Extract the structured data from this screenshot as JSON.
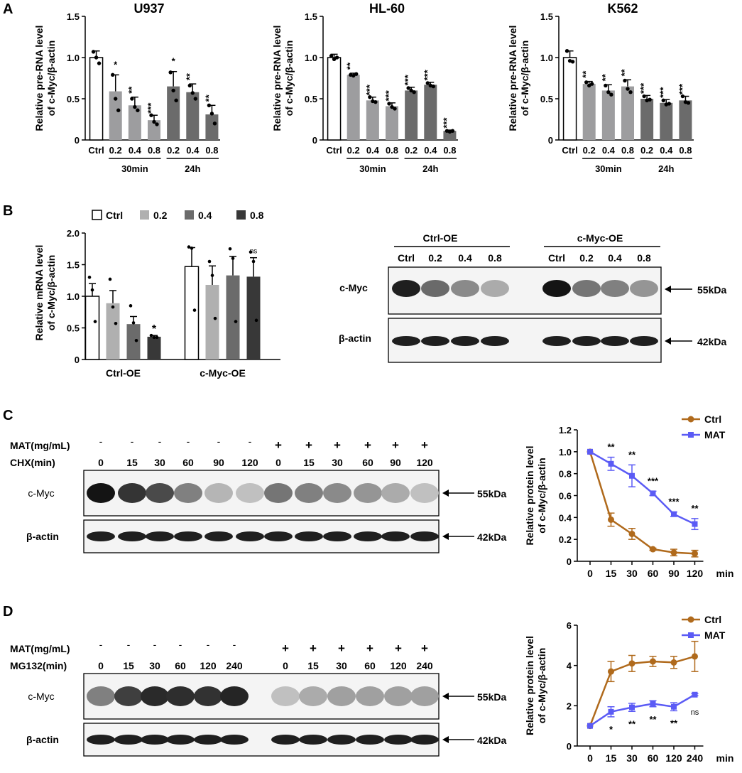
{
  "panels": {
    "a": "A",
    "b": "B",
    "c": "C",
    "d": "D"
  },
  "colors": {
    "ctrl_bar": "#ffffff",
    "light_gray": "#b0b0b0",
    "mid_gray": "#9d9d9f",
    "dark_gray": "#6b6b6b",
    "darkest_gray": "#383838",
    "ctrl_line": "#b06a1c",
    "mat_line": "#5b5bf5"
  },
  "blots": {
    "panel_b": {
      "group_labels": [
        "Ctrl-OE",
        "c-Myc-OE"
      ],
      "lane_labels": [
        "Ctrl",
        "0.2",
        "0.4",
        "0.8",
        "Ctrl",
        "0.2",
        "0.4",
        "0.8"
      ],
      "row_labels": [
        "c-Myc",
        "β-actin"
      ],
      "markers": [
        "55kDa",
        "42kDa"
      ]
    },
    "panel_c": {
      "treatment_label": "MAT(mg/mL)",
      "time_label": "CHX(min)",
      "treatment_marks": [
        "-",
        "-",
        "-",
        "-",
        "-",
        "-",
        "+",
        "+",
        "+",
        "+",
        "+",
        "+"
      ],
      "time_points": [
        "0",
        "15",
        "30",
        "60",
        "90",
        "120",
        "0",
        "15",
        "30",
        "60",
        "90",
        "120"
      ],
      "row_labels": [
        "c-Myc",
        "β-actin"
      ],
      "markers": [
        "55kDa",
        "42kDa"
      ]
    },
    "panel_d": {
      "treatment_label": "MAT(mg/mL)",
      "time_label": "MG132(min)",
      "treatment_marks": [
        "-",
        "-",
        "-",
        "-",
        "-",
        "-",
        "+",
        "+",
        "+",
        "+",
        "+",
        "+"
      ],
      "time_points": [
        "0",
        "15",
        "30",
        "60",
        "120",
        "240",
        "0",
        "15",
        "30",
        "60",
        "120",
        "240"
      ],
      "row_labels": [
        "c-Myc",
        "β-actin"
      ],
      "markers": [
        "55kDa",
        "42kDa"
      ]
    }
  },
  "chart_data": [
    {
      "id": "a1",
      "type": "bar",
      "title": "U937",
      "ylabel": "Relative pre-RNA level\nof c-Myc/β-actin",
      "ylim": [
        0,
        1.5
      ],
      "yticks": [
        "0",
        "0.5",
        "1.0",
        "1.5"
      ],
      "categories": [
        "Ctrl",
        "0.2",
        "0.4",
        "0.8",
        "0.2",
        "0.4",
        "0.8"
      ],
      "groups": [
        "30min",
        "24h"
      ],
      "values": [
        1.0,
        0.59,
        0.42,
        0.24,
        0.65,
        0.58,
        0.31
      ],
      "errors": [
        0.08,
        0.2,
        0.1,
        0.06,
        0.18,
        0.1,
        0.11
      ],
      "points": [
        [
          1.07,
          1.0,
          0.93
        ],
        [
          0.79,
          0.5,
          0.36
        ],
        [
          0.5,
          0.4,
          0.36
        ],
        [
          0.3,
          0.22,
          0.19
        ],
        [
          0.82,
          0.6,
          0.48
        ],
        [
          0.66,
          0.57,
          0.5
        ],
        [
          0.42,
          0.32,
          0.2
        ]
      ],
      "significance": [
        "",
        "*",
        "**",
        "***",
        "*",
        "**",
        "**"
      ]
    },
    {
      "id": "a2",
      "type": "bar",
      "title": "HL-60",
      "ylabel": "Relative pre-RNA level\nof c-Myc/β-actin",
      "ylim": [
        0,
        1.5
      ],
      "yticks": [
        "0",
        "0.5",
        "1.0",
        "1.5"
      ],
      "categories": [
        "Ctrl",
        "0.2",
        "0.4",
        "0.8",
        "0.2",
        "0.4",
        "0.8"
      ],
      "groups": [
        "30min",
        "24h"
      ],
      "values": [
        1.0,
        0.79,
        0.48,
        0.41,
        0.6,
        0.67,
        0.11
      ],
      "errors": [
        0.04,
        0.02,
        0.04,
        0.04,
        0.04,
        0.03,
        0.01
      ],
      "points": [
        [
          1.02,
          0.98,
          1.0
        ],
        [
          0.79,
          0.78,
          0.8
        ],
        [
          0.52,
          0.47,
          0.46
        ],
        [
          0.44,
          0.4,
          0.38
        ],
        [
          0.63,
          0.6,
          0.58
        ],
        [
          0.69,
          0.66,
          0.65
        ],
        [
          0.11,
          0.1,
          0.11
        ]
      ],
      "significance": [
        "",
        "**",
        "***",
        "***",
        "***",
        "***",
        "***"
      ]
    },
    {
      "id": "a3",
      "type": "bar",
      "title": "K562",
      "ylabel": "Relative pre-RNA level\nof c-Myc/β-actin",
      "ylim": [
        0,
        1.5
      ],
      "yticks": [
        "0",
        "0.5",
        "1.0",
        "1.5"
      ],
      "categories": [
        "Ctrl",
        "0.2",
        "0.4",
        "0.8",
        "0.2",
        "0.4",
        "0.8"
      ],
      "groups": [
        "30min",
        "24h"
      ],
      "values": [
        1.0,
        0.68,
        0.6,
        0.65,
        0.5,
        0.45,
        0.48
      ],
      "errors": [
        0.08,
        0.03,
        0.07,
        0.08,
        0.04,
        0.04,
        0.05
      ],
      "points": [
        [
          1.08,
          0.96,
          0.95
        ],
        [
          0.7,
          0.66,
          0.68
        ],
        [
          0.66,
          0.58,
          0.55
        ],
        [
          0.72,
          0.62,
          0.58
        ],
        [
          0.53,
          0.48,
          0.49
        ],
        [
          0.48,
          0.43,
          0.44
        ],
        [
          0.53,
          0.46,
          0.45
        ]
      ],
      "significance": [
        "",
        "**",
        "**",
        "**",
        "***",
        "***",
        "***"
      ]
    },
    {
      "id": "b",
      "type": "bar",
      "ylabel": "Relative mRNA level\nof c-Myc/β-actin",
      "ylim": [
        0,
        2.0
      ],
      "yticks": [
        "0",
        "0.5",
        "1.0",
        "1.5",
        "2.0"
      ],
      "categories": [
        "Ctrl-OE",
        "c-Myc-OE"
      ],
      "legend": [
        "Ctrl",
        "0.2",
        "0.4",
        "0.8"
      ],
      "series": [
        {
          "name": "Ctrl",
          "values": [
            1.0,
            1.47
          ],
          "errors": [
            0.2,
            0.3
          ],
          "points": [
            [
              1.3,
              1.1,
              0.6
            ],
            [
              1.78,
              1.76,
              0.78
            ]
          ]
        },
        {
          "name": "0.2",
          "values": [
            0.89,
            1.18
          ],
          "errors": [
            0.2,
            0.3
          ],
          "points": [
            [
              1.27,
              0.83,
              0.57
            ],
            [
              1.55,
              1.33,
              0.65
            ]
          ]
        },
        {
          "name": "0.4",
          "values": [
            0.56,
            1.33
          ],
          "errors": [
            0.12,
            0.3
          ],
          "points": [
            [
              0.85,
              0.58,
              0.3
            ],
            [
              1.75,
              1.6,
              0.6
            ]
          ]
        },
        {
          "name": "0.8",
          "values": [
            0.36,
            1.31
          ],
          "errors": [
            0.02,
            0.3
          ],
          "points": [
            [
              0.38,
              0.35,
              0.35
            ],
            [
              1.7,
              1.55,
              0.62
            ]
          ]
        }
      ],
      "significance": [
        "*",
        "ns"
      ]
    },
    {
      "id": "c",
      "type": "line",
      "ylabel": "Relative protein level\nof c-Myc/β-actin",
      "xlabel": "min",
      "x": [
        "0",
        "15",
        "30",
        "60",
        "90",
        "120"
      ],
      "ylim": [
        0,
        1.2
      ],
      "yticks": [
        "0",
        "0.2",
        "0.4",
        "0.6",
        "0.8",
        "1.0",
        "1.2"
      ],
      "series": [
        {
          "name": "Ctrl",
          "values": [
            1.0,
            0.38,
            0.25,
            0.11,
            0.08,
            0.07
          ],
          "errors": [
            0,
            0.06,
            0.05,
            0.01,
            0.03,
            0.03
          ]
        },
        {
          "name": "MAT",
          "values": [
            1.0,
            0.89,
            0.78,
            0.62,
            0.43,
            0.34
          ],
          "errors": [
            0,
            0.06,
            0.1,
            0.02,
            0.02,
            0.05
          ]
        }
      ],
      "significance": [
        "",
        "**",
        "**",
        "***",
        "***",
        "**"
      ]
    },
    {
      "id": "d",
      "type": "line",
      "ylabel": "Relative protein level\nof c-Myc/β-actin",
      "xlabel": "min",
      "x": [
        "0",
        "15",
        "30",
        "60",
        "120",
        "240"
      ],
      "ylim": [
        0,
        6
      ],
      "yticks": [
        "0",
        "2",
        "4",
        "6"
      ],
      "series": [
        {
          "name": "Ctrl",
          "values": [
            1.0,
            3.7,
            4.1,
            4.2,
            4.15,
            4.45
          ],
          "errors": [
            0,
            0.5,
            0.4,
            0.25,
            0.3,
            0.75
          ]
        },
        {
          "name": "MAT",
          "values": [
            1.0,
            1.7,
            1.92,
            2.1,
            1.95,
            2.55
          ],
          "errors": [
            0,
            0.25,
            0.2,
            0.15,
            0.2,
            0.05
          ]
        }
      ],
      "significance": [
        "",
        "*",
        "**",
        "**",
        "**",
        "ns"
      ]
    }
  ]
}
